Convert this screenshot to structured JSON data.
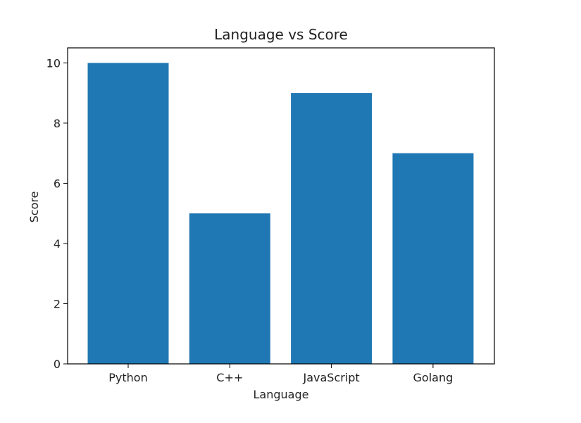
{
  "chart_data": {
    "type": "bar",
    "title": "Language vs Score",
    "xlabel": "Language",
    "ylabel": "Score",
    "categories": [
      "Python",
      "C++",
      "JavaScript",
      "Golang"
    ],
    "values": [
      10,
      5,
      9,
      7
    ],
    "ylim": [
      0,
      10.5
    ],
    "yticks": [
      0,
      2,
      4,
      6,
      8,
      10
    ],
    "bar_color": "#1f77b4",
    "grid": false,
    "legend": "none"
  }
}
